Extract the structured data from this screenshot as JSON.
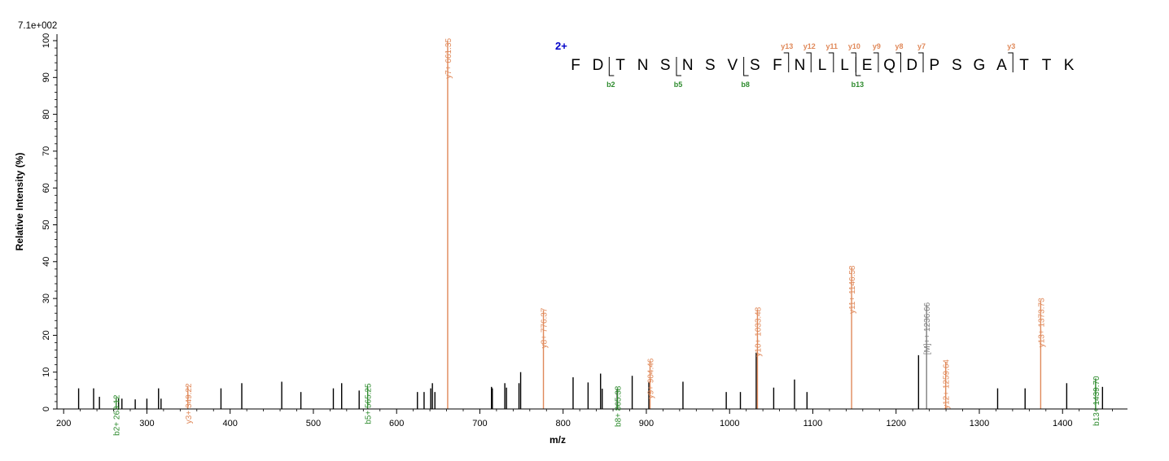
{
  "chart_data": {
    "type": "bar",
    "chart_kind": "mass spectrum (peak/stick plot)",
    "max_intensity_label": "7.1e+002",
    "xlabel": "m/z",
    "ylabel": "Relative   Intensity (%)",
    "xlim": [
      192,
      1478
    ],
    "ylim": [
      0,
      100
    ],
    "x_ticks": [
      200,
      300,
      400,
      500,
      600,
      700,
      800,
      900,
      1000,
      1100,
      1200,
      1300,
      1400
    ],
    "y_ticks": [
      0,
      10,
      20,
      30,
      40,
      50,
      60,
      70,
      80,
      90,
      100
    ],
    "grid": false,
    "colors": {
      "b_ion": "#2e8b2e",
      "y_ion": "#e0895a",
      "precursor": "#808080",
      "other": "#000000",
      "charge": "#0000c8",
      "axis": "#000000"
    },
    "annotated_peaks": [
      {
        "mz": 263.12,
        "intensity": 3.2,
        "ion": "b",
        "label": "b2+ 263.12"
      },
      {
        "mz": 349.22,
        "intensity": 6.3,
        "ion": "y",
        "label": "y3+ 349.22"
      },
      {
        "mz": 565.25,
        "intensity": 6.3,
        "ion": "b",
        "label": "b5+ 565.25"
      },
      {
        "mz": 661.35,
        "intensity": 100,
        "ion": "y",
        "label": "y7+ 661.35"
      },
      {
        "mz": 776.37,
        "intensity": 26.8,
        "ion": "y",
        "label": "y8+ 776.37"
      },
      {
        "mz": 865.38,
        "intensity": 5.6,
        "ion": "b",
        "label": "b8+ 865.38"
      },
      {
        "mz": 904.46,
        "intensity": 13.1,
        "ion": "y",
        "label": "y9+ 904.46"
      },
      {
        "mz": 1033.48,
        "intensity": 27.0,
        "ion": "y",
        "label": "y10+ 1033.48"
      },
      {
        "mz": 1146.58,
        "intensity": 38.3,
        "ion": "y",
        "label": "y11+ 1146.58"
      },
      {
        "mz": 1236.66,
        "intensity": 28.3,
        "ion": "precursor",
        "label": "[M]++ 1236.66"
      },
      {
        "mz": 1259.64,
        "intensity": 12.8,
        "ion": "y",
        "label": "y12+ 1259.64"
      },
      {
        "mz": 1373.73,
        "intensity": 29.5,
        "ion": "y",
        "label": "y13+ 1373.73"
      },
      {
        "mz": 1439.7,
        "intensity": 8.3,
        "ion": "b",
        "label": "b13+ 1439.70"
      }
    ],
    "unlabeled_peaks": [
      {
        "mz": 218,
        "intensity": 5.6
      },
      {
        "mz": 236,
        "intensity": 5.6
      },
      {
        "mz": 243,
        "intensity": 3.3
      },
      {
        "mz": 266,
        "intensity": 2.8
      },
      {
        "mz": 270,
        "intensity": 2.8
      },
      {
        "mz": 286,
        "intensity": 2.6
      },
      {
        "mz": 300,
        "intensity": 2.8
      },
      {
        "mz": 314,
        "intensity": 5.6
      },
      {
        "mz": 317,
        "intensity": 2.8
      },
      {
        "mz": 389,
        "intensity": 5.6
      },
      {
        "mz": 414,
        "intensity": 7.0
      },
      {
        "mz": 462,
        "intensity": 7.4
      },
      {
        "mz": 485,
        "intensity": 4.6
      },
      {
        "mz": 524,
        "intensity": 5.6
      },
      {
        "mz": 534,
        "intensity": 7.0
      },
      {
        "mz": 555,
        "intensity": 5.0
      },
      {
        "mz": 625,
        "intensity": 4.6
      },
      {
        "mz": 633,
        "intensity": 4.6
      },
      {
        "mz": 641,
        "intensity": 5.6
      },
      {
        "mz": 643,
        "intensity": 7.0
      },
      {
        "mz": 646,
        "intensity": 4.6
      },
      {
        "mz": 714,
        "intensity": 6.0
      },
      {
        "mz": 715,
        "intensity": 5.6
      },
      {
        "mz": 730,
        "intensity": 7.0
      },
      {
        "mz": 732,
        "intensity": 5.8
      },
      {
        "mz": 747,
        "intensity": 7.0
      },
      {
        "mz": 749,
        "intensity": 10.0
      },
      {
        "mz": 812,
        "intensity": 8.6
      },
      {
        "mz": 830,
        "intensity": 7.2
      },
      {
        "mz": 845,
        "intensity": 9.6
      },
      {
        "mz": 847,
        "intensity": 5.5
      },
      {
        "mz": 865,
        "intensity": 5.4
      },
      {
        "mz": 883,
        "intensity": 9.0
      },
      {
        "mz": 903,
        "intensity": 7.4
      },
      {
        "mz": 944,
        "intensity": 7.4
      },
      {
        "mz": 996,
        "intensity": 4.6
      },
      {
        "mz": 1013,
        "intensity": 4.6
      },
      {
        "mz": 1032,
        "intensity": 15.3
      },
      {
        "mz": 1053,
        "intensity": 5.8
      },
      {
        "mz": 1078,
        "intensity": 8.0
      },
      {
        "mz": 1093,
        "intensity": 4.6
      },
      {
        "mz": 1227,
        "intensity": 14.6
      },
      {
        "mz": 1322,
        "intensity": 5.6
      },
      {
        "mz": 1355,
        "intensity": 5.6
      },
      {
        "mz": 1405,
        "intensity": 7.0
      },
      {
        "mz": 1448,
        "intensity": 6.0
      }
    ],
    "sequence_annotation": {
      "charge": "2+",
      "residues": [
        "F",
        "D",
        "T",
        "N",
        "S",
        "N",
        "S",
        "V",
        "S",
        "F",
        "N",
        "L",
        "L",
        "E",
        "Q",
        "D",
        "P",
        "S",
        "G",
        "A",
        "T",
        "T",
        "K"
      ],
      "y_ions": [
        {
          "label": "y13",
          "after_index": 10
        },
        {
          "label": "y12",
          "after_index": 11
        },
        {
          "label": "y11",
          "after_index": 12
        },
        {
          "label": "y10",
          "after_index": 13
        },
        {
          "label": "y9",
          "after_index": 14
        },
        {
          "label": "y8",
          "after_index": 15
        },
        {
          "label": "y7",
          "after_index": 16
        },
        {
          "label": "y3",
          "after_index": 20
        }
      ],
      "b_ions": [
        {
          "label": "b2",
          "after_index": 2
        },
        {
          "label": "b5",
          "after_index": 5
        },
        {
          "label": "b8",
          "after_index": 8
        },
        {
          "label": "b13",
          "after_index": 13
        }
      ]
    }
  }
}
